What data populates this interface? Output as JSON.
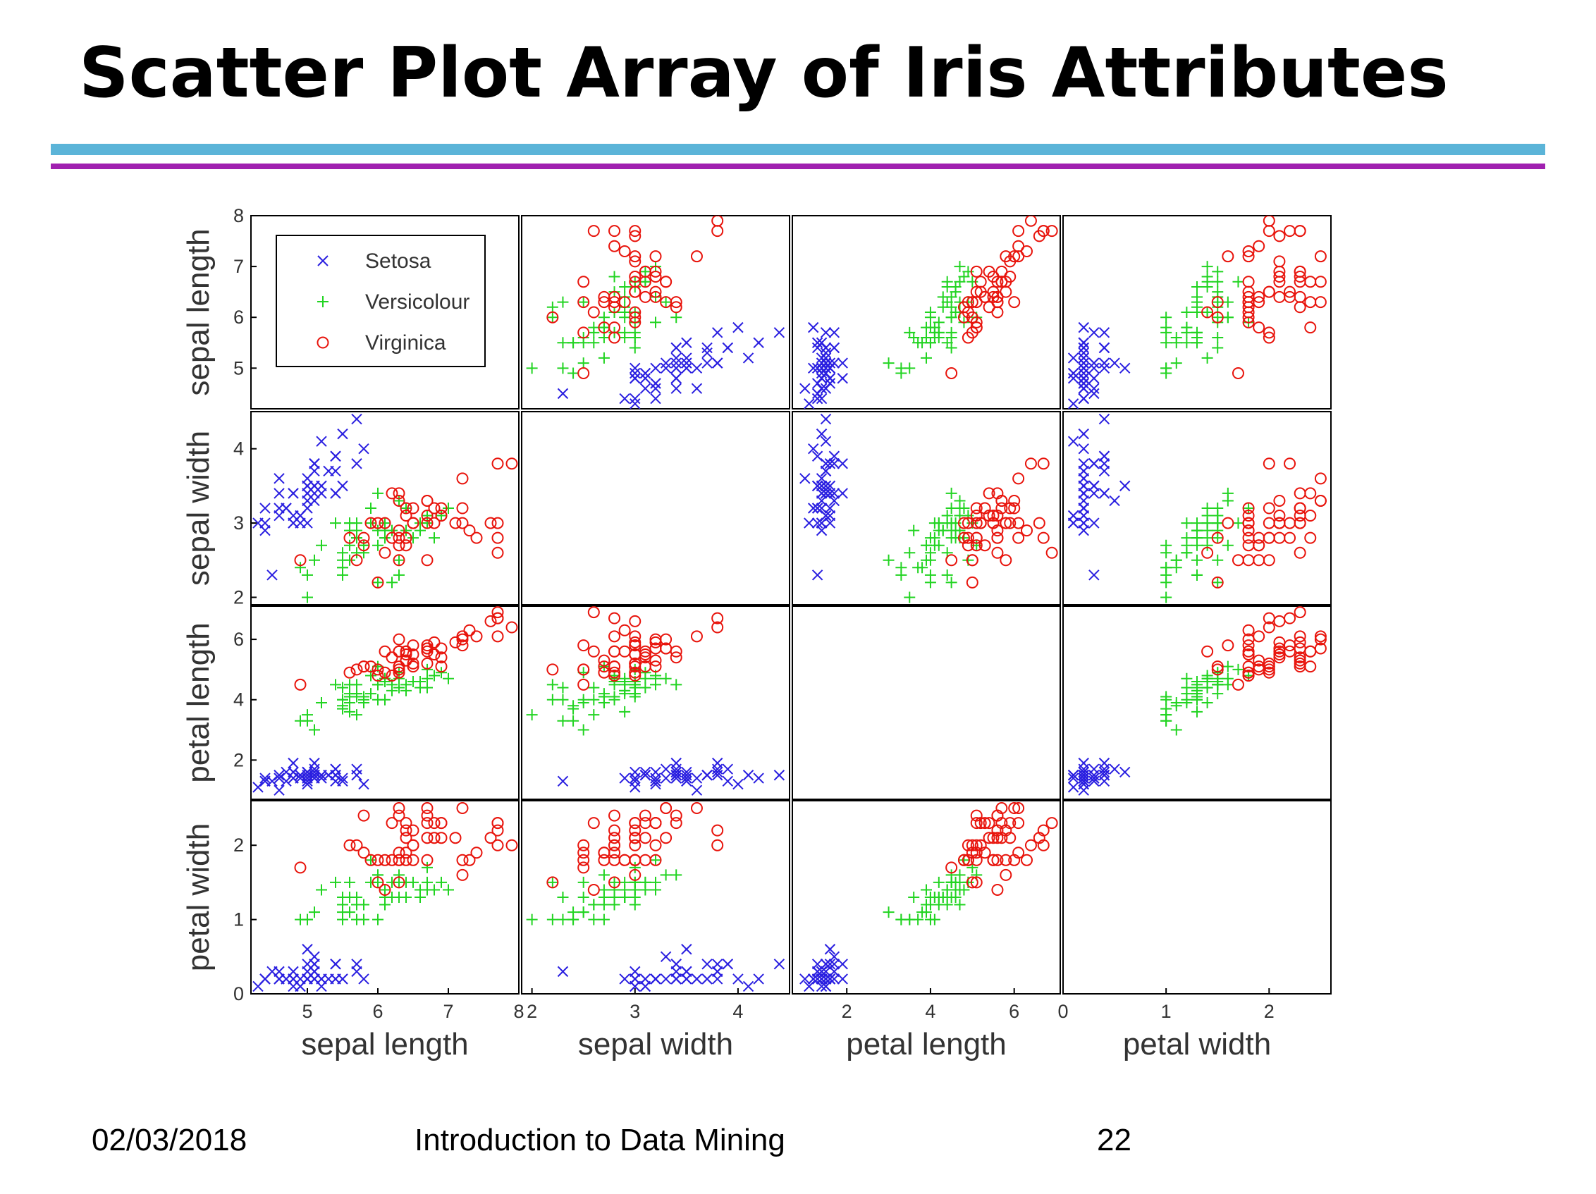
{
  "slide": {
    "title": "Scatter Plot Array of Iris Attributes",
    "footer_date": "02/03/2018",
    "footer_course": "Introduction to Data Mining",
    "footer_page": "22"
  },
  "colors": {
    "setosa": "#2a1fe0",
    "versicolour": "#22d422",
    "virginica": "#e8140c",
    "rule_top": "#5bb4d8",
    "rule_bottom": "#a020b0"
  },
  "chart_data": {
    "type": "scatter",
    "layout": "scatter-matrix",
    "variables": [
      "sepal length",
      "sepal width",
      "petal length",
      "petal width"
    ],
    "ranges": [
      [
        4.2,
        8.0
      ],
      [
        1.9,
        4.5
      ],
      [
        0.7,
        7.1
      ],
      [
        0.0,
        2.6
      ]
    ],
    "ticks": [
      [
        5,
        6,
        7,
        8
      ],
      [
        2,
        3,
        4
      ],
      [
        2,
        4,
        6
      ],
      [
        0,
        1,
        2
      ]
    ],
    "grid": false,
    "legend_position": "top-left of first panel",
    "legend": [
      "Setosa",
      "Versicolour",
      "Virginica"
    ],
    "series": [
      {
        "name": "Setosa",
        "marker": "x",
        "points": [
          [
            5.1,
            3.5,
            1.4,
            0.2
          ],
          [
            4.9,
            3.0,
            1.4,
            0.2
          ],
          [
            4.7,
            3.2,
            1.3,
            0.2
          ],
          [
            4.6,
            3.1,
            1.5,
            0.2
          ],
          [
            5.0,
            3.6,
            1.4,
            0.2
          ],
          [
            5.4,
            3.9,
            1.7,
            0.4
          ],
          [
            4.6,
            3.4,
            1.4,
            0.3
          ],
          [
            5.0,
            3.4,
            1.5,
            0.2
          ],
          [
            4.4,
            2.9,
            1.4,
            0.2
          ],
          [
            4.9,
            3.1,
            1.5,
            0.1
          ],
          [
            5.4,
            3.7,
            1.5,
            0.2
          ],
          [
            4.8,
            3.4,
            1.6,
            0.2
          ],
          [
            4.8,
            3.0,
            1.4,
            0.1
          ],
          [
            4.3,
            3.0,
            1.1,
            0.1
          ],
          [
            5.8,
            4.0,
            1.2,
            0.2
          ],
          [
            5.7,
            4.4,
            1.5,
            0.4
          ],
          [
            5.4,
            3.9,
            1.3,
            0.4
          ],
          [
            5.1,
            3.5,
            1.4,
            0.3
          ],
          [
            5.7,
            3.8,
            1.7,
            0.3
          ],
          [
            5.1,
            3.8,
            1.5,
            0.3
          ],
          [
            5.4,
            3.4,
            1.7,
            0.2
          ],
          [
            5.1,
            3.7,
            1.5,
            0.4
          ],
          [
            4.6,
            3.6,
            1.0,
            0.2
          ],
          [
            5.1,
            3.3,
            1.7,
            0.5
          ],
          [
            4.8,
            3.4,
            1.9,
            0.2
          ],
          [
            5.0,
            3.0,
            1.6,
            0.2
          ],
          [
            5.0,
            3.4,
            1.6,
            0.4
          ],
          [
            5.2,
            3.5,
            1.5,
            0.2
          ],
          [
            5.2,
            3.4,
            1.4,
            0.2
          ],
          [
            4.7,
            3.2,
            1.6,
            0.2
          ],
          [
            4.8,
            3.1,
            1.6,
            0.2
          ],
          [
            5.4,
            3.4,
            1.5,
            0.4
          ],
          [
            5.2,
            4.1,
            1.5,
            0.1
          ],
          [
            5.5,
            4.2,
            1.4,
            0.2
          ],
          [
            4.9,
            3.1,
            1.5,
            0.1
          ],
          [
            5.0,
            3.2,
            1.2,
            0.2
          ],
          [
            5.5,
            3.5,
            1.3,
            0.2
          ],
          [
            4.4,
            3.0,
            1.3,
            0.2
          ],
          [
            5.1,
            3.4,
            1.5,
            0.2
          ],
          [
            5.0,
            3.5,
            1.3,
            0.3
          ],
          [
            4.5,
            2.3,
            1.3,
            0.3
          ],
          [
            4.4,
            3.2,
            1.3,
            0.2
          ],
          [
            5.0,
            3.5,
            1.6,
            0.6
          ],
          [
            5.1,
            3.8,
            1.9,
            0.4
          ],
          [
            4.8,
            3.0,
            1.4,
            0.3
          ],
          [
            5.1,
            3.8,
            1.6,
            0.2
          ],
          [
            4.6,
            3.2,
            1.4,
            0.2
          ],
          [
            5.3,
            3.7,
            1.5,
            0.2
          ],
          [
            5.0,
            3.3,
            1.4,
            0.2
          ]
        ]
      },
      {
        "name": "Versicolour",
        "marker": "+",
        "points": [
          [
            7.0,
            3.2,
            4.7,
            1.4
          ],
          [
            6.4,
            3.2,
            4.5,
            1.5
          ],
          [
            6.9,
            3.1,
            4.9,
            1.5
          ],
          [
            5.5,
            2.3,
            4.0,
            1.3
          ],
          [
            6.5,
            2.8,
            4.6,
            1.5
          ],
          [
            5.7,
            2.8,
            4.5,
            1.3
          ],
          [
            6.3,
            3.3,
            4.7,
            1.6
          ],
          [
            4.9,
            2.4,
            3.3,
            1.0
          ],
          [
            6.6,
            2.9,
            4.6,
            1.3
          ],
          [
            5.2,
            2.7,
            3.9,
            1.4
          ],
          [
            5.0,
            2.0,
            3.5,
            1.0
          ],
          [
            5.9,
            3.0,
            4.2,
            1.5
          ],
          [
            6.0,
            2.2,
            4.0,
            1.0
          ],
          [
            6.1,
            2.9,
            4.7,
            1.4
          ],
          [
            5.6,
            2.9,
            3.6,
            1.3
          ],
          [
            6.7,
            3.1,
            4.4,
            1.4
          ],
          [
            5.6,
            3.0,
            4.5,
            1.5
          ],
          [
            5.8,
            2.7,
            4.1,
            1.0
          ],
          [
            6.2,
            2.2,
            4.5,
            1.5
          ],
          [
            5.6,
            2.5,
            3.9,
            1.1
          ],
          [
            5.9,
            3.2,
            4.8,
            1.8
          ],
          [
            6.1,
            2.8,
            4.0,
            1.3
          ],
          [
            6.3,
            2.5,
            4.9,
            1.5
          ],
          [
            6.1,
            2.8,
            4.7,
            1.2
          ],
          [
            6.4,
            2.9,
            4.3,
            1.3
          ],
          [
            6.6,
            3.0,
            4.4,
            1.4
          ],
          [
            6.8,
            2.8,
            4.8,
            1.4
          ],
          [
            6.7,
            3.0,
            5.0,
            1.7
          ],
          [
            6.0,
            2.9,
            4.5,
            1.5
          ],
          [
            5.7,
            2.6,
            3.5,
            1.0
          ],
          [
            5.5,
            2.4,
            3.8,
            1.1
          ],
          [
            5.5,
            2.4,
            3.7,
            1.0
          ],
          [
            5.8,
            2.7,
            3.9,
            1.2
          ],
          [
            6.0,
            2.7,
            5.1,
            1.6
          ],
          [
            5.4,
            3.0,
            4.5,
            1.5
          ],
          [
            6.0,
            3.4,
            4.5,
            1.6
          ],
          [
            6.7,
            3.1,
            4.7,
            1.5
          ],
          [
            6.3,
            2.3,
            4.4,
            1.3
          ],
          [
            5.6,
            3.0,
            4.1,
            1.3
          ],
          [
            5.5,
            2.5,
            4.0,
            1.3
          ],
          [
            5.5,
            2.6,
            4.4,
            1.2
          ],
          [
            6.1,
            3.0,
            4.6,
            1.4
          ],
          [
            5.8,
            2.6,
            4.0,
            1.2
          ],
          [
            5.0,
            2.3,
            3.3,
            1.0
          ],
          [
            5.6,
            2.7,
            4.2,
            1.3
          ],
          [
            5.7,
            3.0,
            4.2,
            1.2
          ],
          [
            5.7,
            2.9,
            4.2,
            1.3
          ],
          [
            6.2,
            2.9,
            4.3,
            1.3
          ],
          [
            5.1,
            2.5,
            3.0,
            1.1
          ],
          [
            5.7,
            2.8,
            4.1,
            1.3
          ]
        ]
      },
      {
        "name": "Virginica",
        "marker": "o",
        "points": [
          [
            6.3,
            3.3,
            6.0,
            2.5
          ],
          [
            5.8,
            2.7,
            5.1,
            1.9
          ],
          [
            7.1,
            3.0,
            5.9,
            2.1
          ],
          [
            6.3,
            2.9,
            5.6,
            1.8
          ],
          [
            6.5,
            3.0,
            5.8,
            2.2
          ],
          [
            7.6,
            3.0,
            6.6,
            2.1
          ],
          [
            4.9,
            2.5,
            4.5,
            1.7
          ],
          [
            7.3,
            2.9,
            6.3,
            1.8
          ],
          [
            6.7,
            2.5,
            5.8,
            1.8
          ],
          [
            7.2,
            3.6,
            6.1,
            2.5
          ],
          [
            6.5,
            3.2,
            5.1,
            2.0
          ],
          [
            6.4,
            2.7,
            5.3,
            1.9
          ],
          [
            6.8,
            3.0,
            5.5,
            2.1
          ],
          [
            5.7,
            2.5,
            5.0,
            2.0
          ],
          [
            5.8,
            2.8,
            5.1,
            2.4
          ],
          [
            6.4,
            3.2,
            5.3,
            2.3
          ],
          [
            6.5,
            3.0,
            5.5,
            1.8
          ],
          [
            7.7,
            3.8,
            6.7,
            2.2
          ],
          [
            7.7,
            2.6,
            6.9,
            2.3
          ],
          [
            6.0,
            2.2,
            5.0,
            1.5
          ],
          [
            6.9,
            3.2,
            5.7,
            2.3
          ],
          [
            5.6,
            2.8,
            4.9,
            2.0
          ],
          [
            7.7,
            2.8,
            6.7,
            2.0
          ],
          [
            6.3,
            2.7,
            4.9,
            1.8
          ],
          [
            6.7,
            3.3,
            5.7,
            2.1
          ],
          [
            7.2,
            3.2,
            6.0,
            1.8
          ],
          [
            6.2,
            2.8,
            4.8,
            1.8
          ],
          [
            6.1,
            3.0,
            4.9,
            1.8
          ],
          [
            6.4,
            2.8,
            5.6,
            2.1
          ],
          [
            7.2,
            3.0,
            5.8,
            1.6
          ],
          [
            7.4,
            2.8,
            6.1,
            1.9
          ],
          [
            7.9,
            3.8,
            6.4,
            2.0
          ],
          [
            6.4,
            2.8,
            5.6,
            2.2
          ],
          [
            6.3,
            2.8,
            5.1,
            1.5
          ],
          [
            6.1,
            2.6,
            5.6,
            1.4
          ],
          [
            7.7,
            3.0,
            6.1,
            2.3
          ],
          [
            6.3,
            3.4,
            5.6,
            2.4
          ],
          [
            6.4,
            3.1,
            5.5,
            1.8
          ],
          [
            6.0,
            3.0,
            4.8,
            1.8
          ],
          [
            6.9,
            3.1,
            5.4,
            2.1
          ],
          [
            6.7,
            3.1,
            5.6,
            2.4
          ],
          [
            6.9,
            3.1,
            5.1,
            2.3
          ],
          [
            6.8,
            3.2,
            5.9,
            2.3
          ],
          [
            6.7,
            3.3,
            5.7,
            2.5
          ],
          [
            6.7,
            3.0,
            5.2,
            2.3
          ],
          [
            6.3,
            2.5,
            5.0,
            1.9
          ],
          [
            6.5,
            3.0,
            5.2,
            2.0
          ],
          [
            6.2,
            3.4,
            5.4,
            2.3
          ],
          [
            5.9,
            3.0,
            5.1,
            1.8
          ]
        ]
      }
    ]
  }
}
